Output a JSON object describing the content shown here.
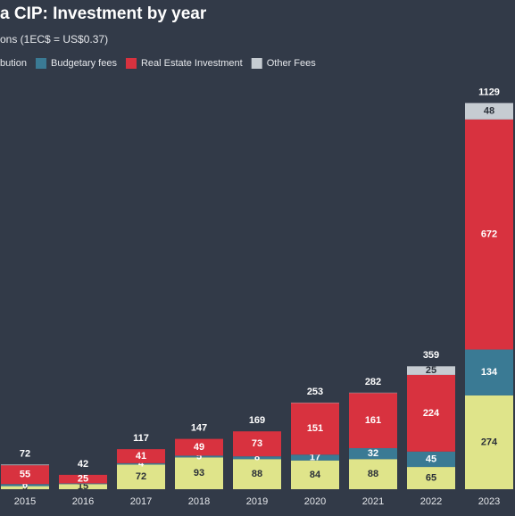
{
  "chart_data": {
    "type": "stacked-bar",
    "title": "a CIP: Investment by year",
    "subtitle": "ons (1EC$ = US$0.37)",
    "categories": [
      "2015",
      "2016",
      "2017",
      "2018",
      "2019",
      "2020",
      "2021",
      "2022",
      "2023"
    ],
    "series": [
      {
        "name": "bution",
        "color": "#dfe48a",
        "values": [
          9,
          15,
          72,
          93,
          88,
          84,
          88,
          65,
          274
        ]
      },
      {
        "name": "Budgetary fees",
        "color": "#3a7a94",
        "values": [
          6,
          2,
          4,
          5,
          8,
          17,
          32,
          45,
          134
        ]
      },
      {
        "name": "Real Estate Investment",
        "color": "#d8323f",
        "values": [
          55,
          25,
          41,
          49,
          73,
          151,
          161,
          224,
          672
        ]
      },
      {
        "name": "Other Fees",
        "color": "#c6ccd2",
        "values": [
          2,
          0,
          0,
          0,
          0,
          1,
          1,
          25,
          48
        ]
      }
    ],
    "totals": [
      72,
      42,
      117,
      147,
      169,
      253,
      282,
      359,
      1129
    ]
  }
}
